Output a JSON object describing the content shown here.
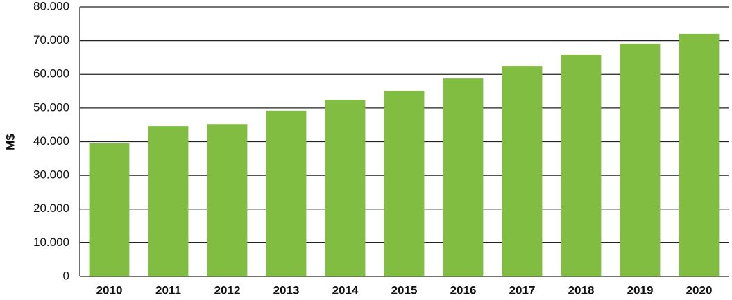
{
  "chart_data": {
    "type": "bar",
    "y_label": "M$",
    "categories": [
      "2010",
      "2011",
      "2012",
      "2013",
      "2014",
      "2015",
      "2016",
      "2017",
      "2018",
      "2019",
      "2020"
    ],
    "values": [
      39500,
      44600,
      45200,
      49200,
      52400,
      55100,
      58800,
      62500,
      65800,
      69100,
      72000
    ],
    "color": "#80bd41",
    "ylim": [
      0,
      80000
    ],
    "yticks": [
      0,
      {
        "value": 10000,
        "label": "10.000"
      },
      {
        "value": 20000,
        "label": "20.000"
      },
      {
        "value": 30000,
        "label": "30.000"
      },
      {
        "value": 40000,
        "label": "40.000"
      },
      {
        "value": 50000,
        "label": "50.000"
      },
      {
        "value": 60000,
        "label": "60.000"
      },
      {
        "value": 70000,
        "label": "70.000"
      },
      {
        "value": 80000,
        "label": "80.000"
      }
    ],
    "grid": true
  }
}
